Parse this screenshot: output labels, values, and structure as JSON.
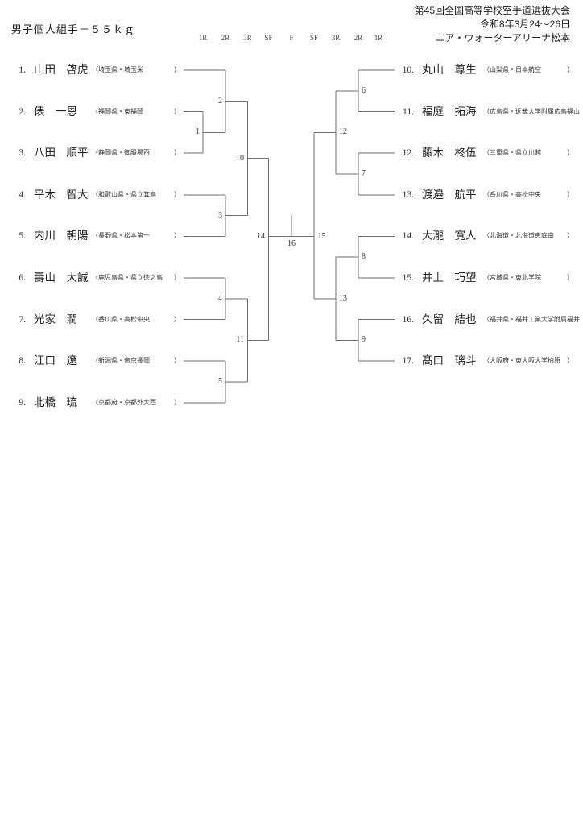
{
  "header": {
    "weight_class": "男子個人組手－５５ｋｇ",
    "event_title": "第45回全国高等学校空手道選抜大会",
    "event_dates": "令和8年3月24～26日",
    "event_venue": "エア・ウォーターアリーナ松本"
  },
  "round_labels": [
    "1R",
    "2R",
    "3R",
    "SF",
    "F",
    "SF",
    "3R",
    "2R",
    "1R"
  ],
  "players_left": [
    {
      "seed": "1.",
      "name": "山田　啓虎",
      "affiliation": "（埼玉県・埼玉栄",
      "close": "）"
    },
    {
      "seed": "2.",
      "name": "俵　一恩",
      "affiliation": "（福岡県・東福岡",
      "close": "）"
    },
    {
      "seed": "3.",
      "name": "八田　順平",
      "affiliation": "（静岡県・御殿場西",
      "close": "）"
    },
    {
      "seed": "4.",
      "name": "平木　智大",
      "affiliation": "（和歌山県・県立箕島",
      "close": "）"
    },
    {
      "seed": "5.",
      "name": "内川　朝陽",
      "affiliation": "（長野県・松本第一",
      "close": "）"
    },
    {
      "seed": "6.",
      "name": "壽山　大誠",
      "affiliation": "（鹿児島県・県立徳之島",
      "close": "）"
    },
    {
      "seed": "7.",
      "name": "光家　潤",
      "affiliation": "（香川県・高松中央",
      "close": "）"
    },
    {
      "seed": "8.",
      "name": "江口　遼",
      "affiliation": "（新潟県・帝京長岡",
      "close": "）"
    },
    {
      "seed": "9.",
      "name": "北橋　琉",
      "affiliation": "（京都府・京都外大西",
      "close": "）"
    }
  ],
  "players_right": [
    {
      "seed": "10.",
      "name": "丸山　尊生",
      "affiliation": "（山梨県・日本航空",
      "close": "）"
    },
    {
      "seed": "11.",
      "name": "福庭　拓海",
      "affiliation": "（広島県・近畿大学附属広島福山",
      "close": ""
    },
    {
      "seed": "12.",
      "name": "藤木　柊伍",
      "affiliation": "（三重県・県立川越",
      "close": "）"
    },
    {
      "seed": "13.",
      "name": "渡邉　航平",
      "affiliation": "（香川県・高松中央",
      "close": "）"
    },
    {
      "seed": "14.",
      "name": "大瀧　寛人",
      "affiliation": "（北海道・北海道恵庭南",
      "close": "）"
    },
    {
      "seed": "15.",
      "name": "井上　巧望",
      "affiliation": "（宮城県・東北学院",
      "close": "）"
    },
    {
      "seed": "16.",
      "name": "久留　結也",
      "affiliation": "（福井県・福井工業大学附属福井",
      "close": ""
    },
    {
      "seed": "17.",
      "name": "髙口　璃斗",
      "affiliation": "（大阪府・東大阪大学柏原",
      "close": "）"
    }
  ],
  "matches": [
    {
      "number": "1",
      "round": "1R",
      "side": "left",
      "between": [
        "seed 2",
        "seed 3"
      ]
    },
    {
      "number": "2",
      "round": "2R",
      "side": "left",
      "between": [
        "seed 1",
        "winner of 1"
      ]
    },
    {
      "number": "3",
      "round": "2R",
      "side": "left",
      "between": [
        "seed 4",
        "seed 5"
      ]
    },
    {
      "number": "4",
      "round": "2R",
      "side": "left",
      "between": [
        "seed 6",
        "seed 7"
      ]
    },
    {
      "number": "5",
      "round": "2R",
      "side": "left",
      "between": [
        "seed 8",
        "seed 9"
      ]
    },
    {
      "number": "6",
      "round": "2R",
      "side": "right",
      "between": [
        "seed 10",
        "seed 11"
      ]
    },
    {
      "number": "7",
      "round": "2R",
      "side": "right",
      "between": [
        "seed 12",
        "seed 13"
      ]
    },
    {
      "number": "8",
      "round": "2R",
      "side": "right",
      "between": [
        "seed 14",
        "seed 15"
      ]
    },
    {
      "number": "9",
      "round": "2R",
      "side": "right",
      "between": [
        "seed 16",
        "seed 17"
      ]
    },
    {
      "number": "10",
      "round": "3R",
      "side": "left",
      "between": [
        "winner of 2",
        "winner of 3"
      ]
    },
    {
      "number": "11",
      "round": "3R",
      "side": "left",
      "between": [
        "winner of 4",
        "winner of 5"
      ]
    },
    {
      "number": "12",
      "round": "3R",
      "side": "right",
      "between": [
        "winner of 6",
        "winner of 7"
      ]
    },
    {
      "number": "13",
      "round": "3R",
      "side": "right",
      "between": [
        "winner of 8",
        "winner of 9"
      ]
    },
    {
      "number": "14",
      "round": "SF",
      "side": "left",
      "between": [
        "winner of 10",
        "winner of 11"
      ]
    },
    {
      "number": "15",
      "round": "SF",
      "side": "right",
      "between": [
        "winner of 12",
        "winner of 13"
      ]
    },
    {
      "number": "16",
      "round": "F",
      "side": "center",
      "between": [
        "winner of 14",
        "winner of 15"
      ]
    }
  ]
}
